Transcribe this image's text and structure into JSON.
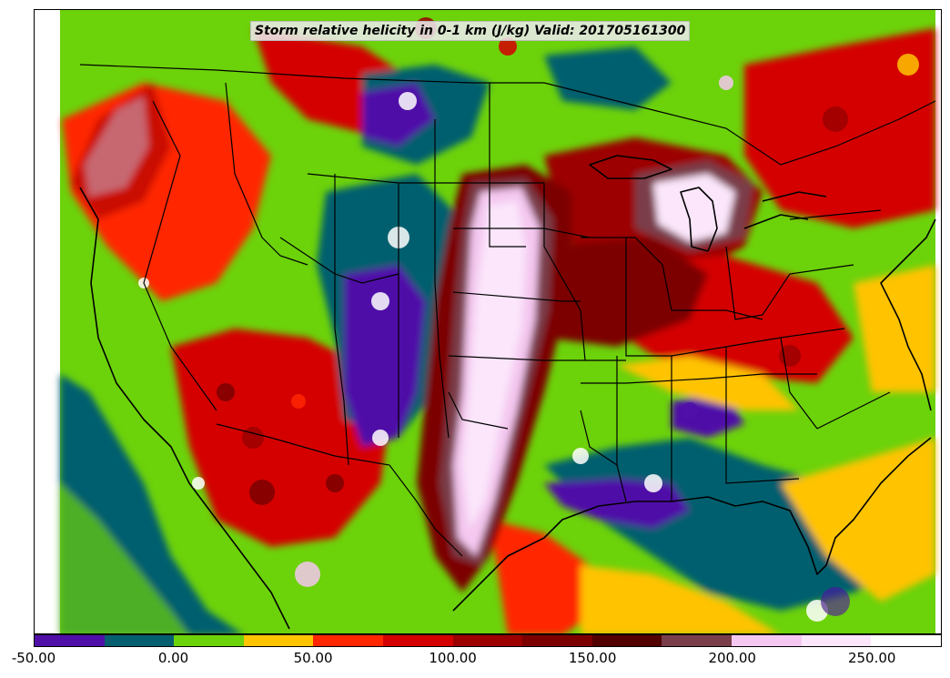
{
  "title": "Storm relative helicity in 0-1 km (J/kg) Valid: 201705161300",
  "legend": {
    "ticks": [
      "-50.00",
      "0.00",
      "50.00",
      "100.00",
      "150.00",
      "200.00",
      "250.00"
    ],
    "tick_values": [
      -50,
      0,
      50,
      100,
      150,
      200,
      250
    ],
    "range": [
      -50,
      275
    ],
    "bins": [
      {
        "from": -50,
        "to": -25,
        "color": "#5010a8"
      },
      {
        "from": -25,
        "to": 0,
        "color": "#065f6e"
      },
      {
        "from": 0,
        "to": 25,
        "color": "#6cd20a"
      },
      {
        "from": 25,
        "to": 50,
        "color": "#ffc300"
      },
      {
        "from": 50,
        "to": 75,
        "color": "#ff2600"
      },
      {
        "from": 75,
        "to": 100,
        "color": "#d40000"
      },
      {
        "from": 100,
        "to": 125,
        "color": "#9c0000"
      },
      {
        "from": 125,
        "to": 150,
        "color": "#7c0000"
      },
      {
        "from": 150,
        "to": 175,
        "color": "#520000"
      },
      {
        "from": 175,
        "to": 200,
        "color": "#7a3e4a"
      },
      {
        "from": 200,
        "to": 225,
        "color": "#f4c8f0"
      },
      {
        "from": 225,
        "to": 250,
        "color": "#fbe6fb"
      },
      {
        "from": 250,
        "to": 275,
        "color": "#ffffff"
      }
    ]
  }
}
